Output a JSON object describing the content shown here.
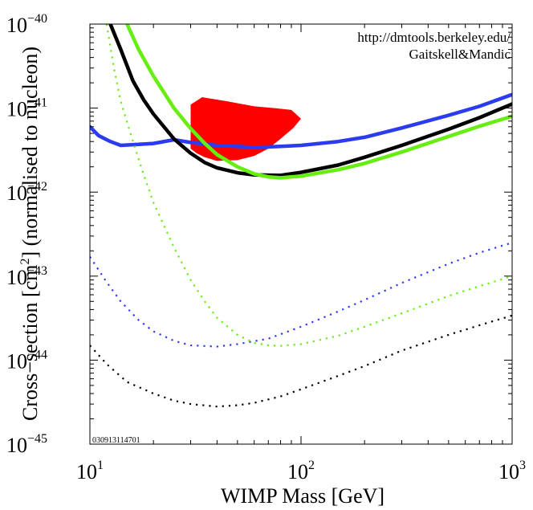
{
  "chart_data": {
    "type": "line",
    "xlabel": "WIMP Mass [GeV]",
    "ylabel": "Cross−section [cm",
    "ylabel_sup": "2",
    "ylabel_tail": "] (normalised to nucleon)",
    "x_scale": "log",
    "y_scale": "log",
    "xlim": [
      10,
      1000
    ],
    "ylim": [
      1e-45,
      1e-40
    ],
    "grid": false,
    "legend": "none",
    "x_ticks": [
      {
        "value": 10,
        "base": "10",
        "exp": "1"
      },
      {
        "value": 100,
        "base": "10",
        "exp": "2"
      },
      {
        "value": 1000,
        "base": "10",
        "exp": "3"
      }
    ],
    "y_ticks": [
      {
        "value": 1e-40,
        "base": "10",
        "exp": "−40"
      },
      {
        "value": 1e-41,
        "base": "10",
        "exp": "−41"
      },
      {
        "value": 1e-42,
        "base": "10",
        "exp": "−42"
      },
      {
        "value": 1e-43,
        "base": "10",
        "exp": "−43"
      },
      {
        "value": 1e-44,
        "base": "10",
        "exp": "−44"
      },
      {
        "value": 1e-45,
        "base": "10",
        "exp": "−45"
      }
    ],
    "annotations": {
      "url": "http://dmtools.berkeley.edu/",
      "credit": "Gaitskell&Mandic",
      "stamp": "030913114701"
    },
    "series": [
      {
        "color": "#2b3cf0",
        "style": "solid",
        "points": [
          [
            10,
            6e-42
          ],
          [
            11,
            4.7e-42
          ],
          [
            12.5,
            4e-42
          ],
          [
            14,
            3.6e-42
          ],
          [
            17,
            3.7e-42
          ],
          [
            20,
            3.8e-42
          ],
          [
            25,
            4.2e-42
          ],
          [
            30,
            3.9e-42
          ],
          [
            40,
            3.6e-42
          ],
          [
            50,
            3.5e-42
          ],
          [
            60,
            3.4e-42
          ],
          [
            80,
            3.5e-42
          ],
          [
            100,
            3.6e-42
          ],
          [
            150,
            4e-42
          ],
          [
            200,
            4.5e-42
          ],
          [
            300,
            5.8e-42
          ],
          [
            500,
            8.2e-42
          ],
          [
            700,
            1.05e-41
          ],
          [
            1000,
            1.45e-41
          ]
        ]
      },
      {
        "color": "#000000",
        "style": "solid",
        "points": [
          [
            12.5,
            1e-40
          ],
          [
            14,
            5e-41
          ],
          [
            16,
            2.1e-41
          ],
          [
            18,
            1.25e-41
          ],
          [
            20,
            8.5e-42
          ],
          [
            25,
            4.3e-42
          ],
          [
            30,
            2.9e-42
          ],
          [
            35,
            2.25e-42
          ],
          [
            40,
            1.95e-42
          ],
          [
            50,
            1.7e-42
          ],
          [
            60,
            1.6e-42
          ],
          [
            80,
            1.58e-42
          ],
          [
            100,
            1.72e-42
          ],
          [
            150,
            2.1e-42
          ],
          [
            200,
            2.6e-42
          ],
          [
            300,
            3.6e-42
          ],
          [
            500,
            5.6e-42
          ],
          [
            700,
            7.7e-42
          ],
          [
            1000,
            1.12e-41
          ]
        ]
      },
      {
        "color": "#66ee11",
        "style": "solid",
        "points": [
          [
            15,
            1e-40
          ],
          [
            17,
            5e-41
          ],
          [
            20,
            2.4e-41
          ],
          [
            25,
            1e-41
          ],
          [
            30,
            5.7e-42
          ],
          [
            35,
            3.8e-42
          ],
          [
            40,
            2.8e-42
          ],
          [
            50,
            2e-42
          ],
          [
            60,
            1.65e-42
          ],
          [
            70,
            1.52e-42
          ],
          [
            80,
            1.48e-42
          ],
          [
            100,
            1.55e-42
          ],
          [
            150,
            1.85e-42
          ],
          [
            200,
            2.2e-42
          ],
          [
            300,
            3e-42
          ],
          [
            500,
            4.6e-42
          ],
          [
            700,
            6.1e-42
          ],
          [
            1000,
            8e-42
          ]
        ]
      },
      {
        "color": "#2b3cf0",
        "style": "dotted",
        "points": [
          [
            10,
            1.7e-43
          ],
          [
            12,
            8.5e-44
          ],
          [
            14,
            5e-44
          ],
          [
            17,
            3e-44
          ],
          [
            20,
            2.2e-44
          ],
          [
            25,
            1.7e-44
          ],
          [
            30,
            1.5e-44
          ],
          [
            40,
            1.45e-44
          ],
          [
            50,
            1.55e-44
          ],
          [
            70,
            1.8e-44
          ],
          [
            100,
            2.5e-44
          ],
          [
            150,
            3.8e-44
          ],
          [
            200,
            5.2e-44
          ],
          [
            300,
            8.3e-44
          ],
          [
            500,
            1.4e-43
          ],
          [
            700,
            1.9e-43
          ],
          [
            1000,
            2.5e-43
          ]
        ]
      },
      {
        "color": "#66ee11",
        "style": "dotted",
        "points": [
          [
            12,
            1e-40
          ],
          [
            13,
            3e-41
          ],
          [
            14,
            1.2e-41
          ],
          [
            16,
            4e-42
          ],
          [
            18,
            1.6e-42
          ],
          [
            20,
            7.5e-43
          ],
          [
            25,
            2.2e-43
          ],
          [
            30,
            9e-44
          ],
          [
            35,
            5e-44
          ],
          [
            40,
            3.2e-44
          ],
          [
            50,
            2e-44
          ],
          [
            60,
            1.6e-44
          ],
          [
            70,
            1.5e-44
          ],
          [
            80,
            1.48e-44
          ],
          [
            100,
            1.55e-44
          ],
          [
            150,
            1.95e-44
          ],
          [
            200,
            2.5e-44
          ],
          [
            300,
            3.6e-44
          ],
          [
            500,
            5.8e-44
          ],
          [
            700,
            7.6e-44
          ],
          [
            1000,
            1e-43
          ]
        ]
      },
      {
        "color": "#000000",
        "style": "dotted",
        "points": [
          [
            10,
            1.5e-44
          ],
          [
            12,
            9e-45
          ],
          [
            15,
            5.5e-45
          ],
          [
            20,
            4e-45
          ],
          [
            25,
            3.3e-45
          ],
          [
            30,
            3e-45
          ],
          [
            40,
            2.8e-45
          ],
          [
            50,
            2.9e-45
          ],
          [
            60,
            3.1e-45
          ],
          [
            80,
            3.7e-45
          ],
          [
            100,
            4.5e-45
          ],
          [
            150,
            6.5e-45
          ],
          [
            200,
            8.5e-45
          ],
          [
            300,
            1.3e-44
          ],
          [
            500,
            2e-44
          ],
          [
            700,
            2.6e-44
          ],
          [
            1000,
            3.4e-44
          ]
        ]
      }
    ],
    "regions": [
      {
        "color": "#ff0000",
        "points": [
          [
            30,
            1.1e-41
          ],
          [
            34,
            1.35e-41
          ],
          [
            45,
            1.2e-41
          ],
          [
            60,
            1.05e-41
          ],
          [
            75,
            1e-41
          ],
          [
            90,
            9.5e-42
          ],
          [
            100,
            7.5e-42
          ],
          [
            92,
            5.8e-42
          ],
          [
            80,
            4.3e-42
          ],
          [
            70,
            3.3e-42
          ],
          [
            60,
            2.7e-42
          ],
          [
            50,
            2.4e-42
          ],
          [
            40,
            2.35e-42
          ],
          [
            35,
            2.6e-42
          ],
          [
            32,
            2.9e-42
          ],
          [
            30,
            3.3e-42
          ]
        ]
      }
    ]
  }
}
